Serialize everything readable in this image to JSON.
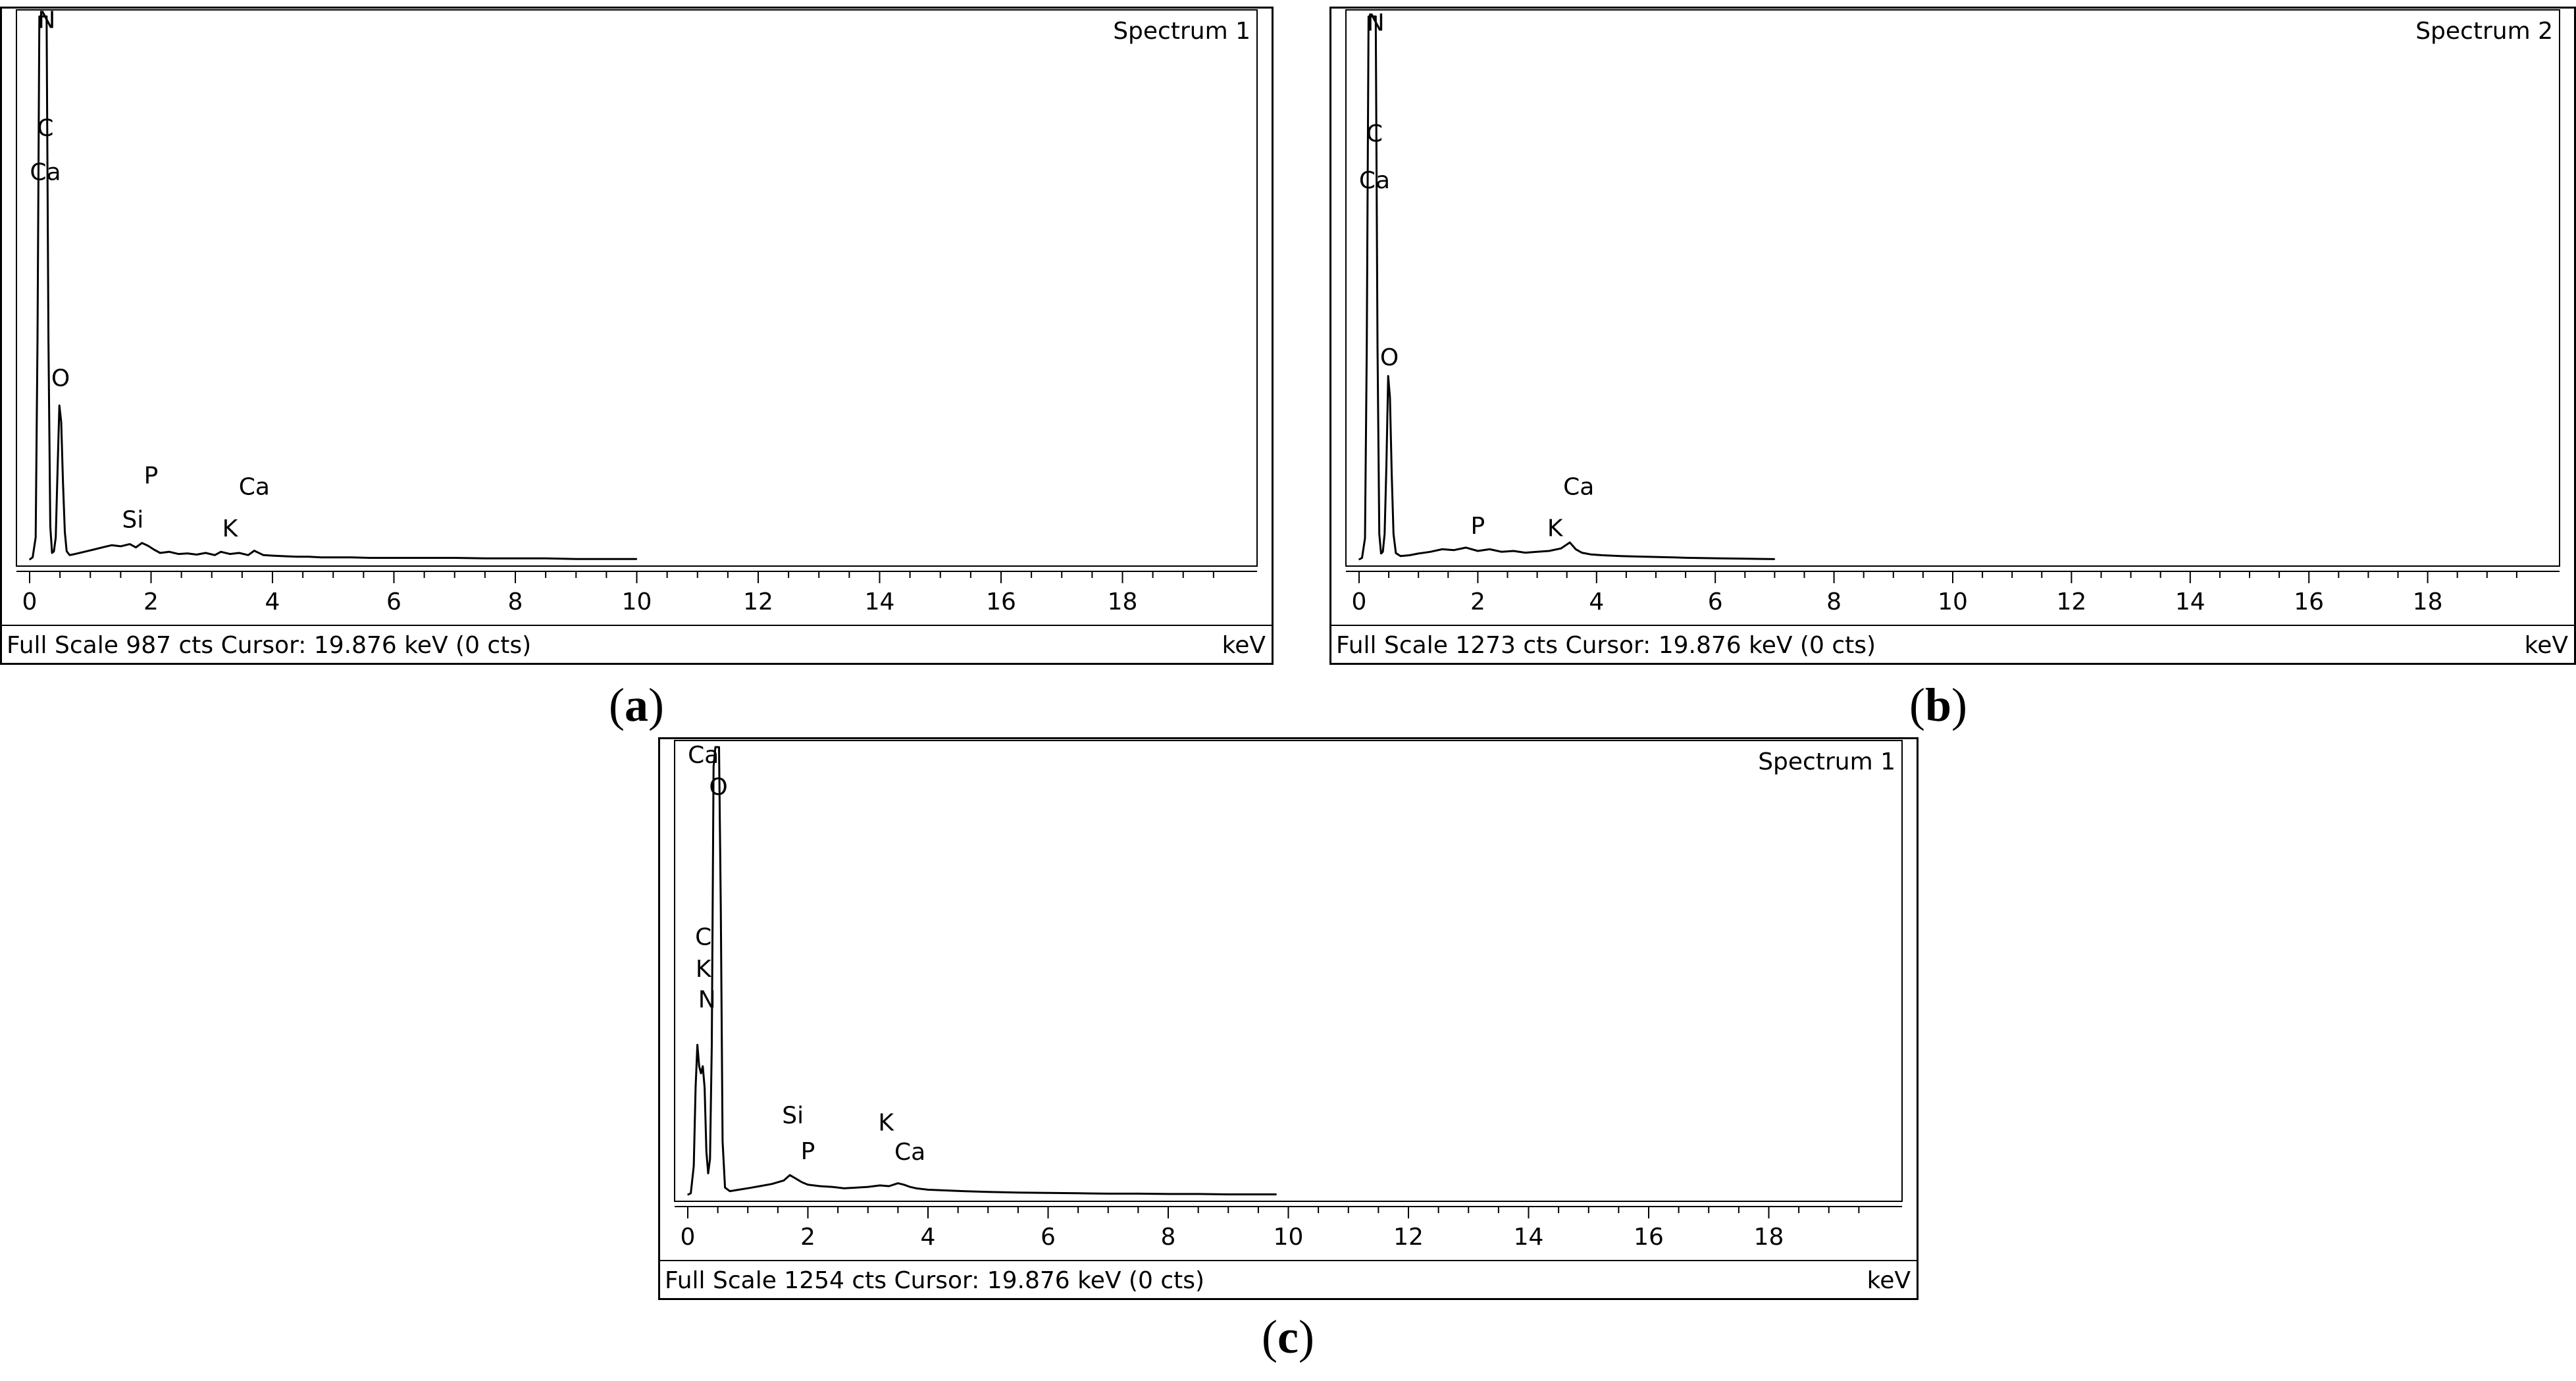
{
  "chart_data": [
    {
      "type": "line",
      "id": "a",
      "caption_letter": "a",
      "title": "Spectrum 1",
      "full_scale_cts": 987,
      "status_text": "Full Scale 987 cts  Cursor: 19.876 keV (0 cts)",
      "xlabel": "keV",
      "xlim": [
        0,
        20
      ],
      "ylim": [
        0,
        987
      ],
      "x_ticks": [
        0,
        2,
        4,
        6,
        8,
        10,
        12,
        14,
        16,
        18
      ],
      "x_minor_step": 0.5,
      "series": [
        {
          "x": [
            0,
            0.05,
            0.1,
            0.13,
            0.16,
            0.19,
            0.22,
            0.25,
            0.28,
            0.31,
            0.34,
            0.37,
            0.4,
            0.43,
            0.46,
            0.49,
            0.52,
            0.55,
            0.58,
            0.61,
            0.66,
            0.75,
            0.9,
            1.05,
            1.2,
            1.35,
            1.5,
            1.65,
            1.75,
            1.85,
            1.95,
            2.05,
            2.15,
            2.3,
            2.45,
            2.6,
            2.75,
            2.9,
            3.05,
            3.15,
            3.3,
            3.45,
            3.6,
            3.7,
            3.85,
            4.0,
            4.2,
            4.4,
            4.6,
            4.8,
            5.0,
            5.3,
            5.6,
            6.0,
            6.5,
            7.0,
            7.5,
            8.0,
            8.5,
            9.0,
            9.5,
            10
          ],
          "y": [
            0,
            4,
            40,
            400,
            987,
            987,
            987,
            987,
            987,
            400,
            60,
            12,
            15,
            40,
            160,
            280,
            250,
            140,
            50,
            15,
            8,
            10,
            14,
            18,
            22,
            26,
            24,
            28,
            22,
            30,
            25,
            18,
            12,
            14,
            10,
            11,
            9,
            12,
            8,
            14,
            10,
            12,
            8,
            16,
            8,
            7,
            6,
            5,
            5,
            4,
            4,
            4,
            3,
            3,
            3,
            3,
            2,
            2,
            2,
            1,
            1,
            1
          ]
        }
      ],
      "peak_labels": [
        {
          "text": "N",
          "x": 0.28,
          "y": 966
        },
        {
          "text": "C",
          "x": 0.26,
          "y": 770
        },
        {
          "text": "Ca",
          "x": 0.26,
          "y": 690
        },
        {
          "text": "O",
          "x": 0.51,
          "y": 315
        },
        {
          "text": "P",
          "x": 2.0,
          "y": 138
        },
        {
          "text": "Si",
          "x": 1.7,
          "y": 58
        },
        {
          "text": "Ca",
          "x": 3.7,
          "y": 118
        },
        {
          "text": "K",
          "x": 3.3,
          "y": 42
        }
      ]
    },
    {
      "type": "line",
      "id": "b",
      "caption_letter": "b",
      "title": "Spectrum 2",
      "full_scale_cts": 1273,
      "status_text": "Full Scale 1273 cts  Cursor: 19.876 keV (0 cts)",
      "xlabel": "keV",
      "xlim": [
        0,
        20
      ],
      "ylim": [
        0,
        1273
      ],
      "x_ticks": [
        0,
        2,
        4,
        6,
        8,
        10,
        12,
        14,
        16,
        18
      ],
      "x_minor_step": 0.5,
      "series": [
        {
          "x": [
            0,
            0.05,
            0.1,
            0.13,
            0.16,
            0.19,
            0.22,
            0.25,
            0.28,
            0.31,
            0.34,
            0.37,
            0.4,
            0.43,
            0.46,
            0.49,
            0.52,
            0.55,
            0.58,
            0.62,
            0.7,
            0.85,
            1.0,
            1.2,
            1.4,
            1.6,
            1.8,
            2.0,
            2.2,
            2.4,
            2.6,
            2.8,
            3.0,
            3.2,
            3.4,
            3.55,
            3.65,
            3.75,
            3.9,
            4.1,
            4.4,
            4.7,
            5.0,
            5.3,
            5.5,
            6.0,
            6.5,
            7.0
          ],
          "y": [
            0,
            4,
            50,
            500,
            1273,
            1273,
            1273,
            1273,
            1273,
            500,
            60,
            14,
            18,
            60,
            220,
            430,
            380,
            200,
            60,
            15,
            8,
            10,
            14,
            18,
            24,
            22,
            28,
            20,
            24,
            18,
            20,
            16,
            18,
            20,
            26,
            40,
            24,
            16,
            12,
            10,
            8,
            7,
            6,
            5,
            4,
            3,
            2,
            1
          ]
        }
      ],
      "peak_labels": [
        {
          "text": "N",
          "x": 0.28,
          "y": 1240
        },
        {
          "text": "C",
          "x": 0.26,
          "y": 980
        },
        {
          "text": "Ca",
          "x": 0.26,
          "y": 870
        },
        {
          "text": "O",
          "x": 0.51,
          "y": 455
        },
        {
          "text": "P",
          "x": 2.0,
          "y": 60
        },
        {
          "text": "K",
          "x": 3.3,
          "y": 55
        },
        {
          "text": "Ca",
          "x": 3.7,
          "y": 152
        }
      ]
    },
    {
      "type": "line",
      "id": "c",
      "caption_letter": "c",
      "title": "Spectrum 1",
      "full_scale_cts": 1254,
      "status_text": "Full Scale 1254 cts  Cursor: 19.876 keV (0 cts)",
      "xlabel": "keV",
      "xlim": [
        0,
        20
      ],
      "ylim": [
        0,
        1254
      ],
      "x_ticks": [
        0,
        2,
        4,
        6,
        8,
        10,
        12,
        14,
        16,
        18
      ],
      "x_minor_step": 0.5,
      "series": [
        {
          "x": [
            0,
            0.05,
            0.1,
            0.13,
            0.16,
            0.19,
            0.22,
            0.25,
            0.28,
            0.31,
            0.34,
            0.37,
            0.4,
            0.43,
            0.46,
            0.49,
            0.52,
            0.55,
            0.58,
            0.62,
            0.7,
            0.85,
            1.0,
            1.2,
            1.4,
            1.6,
            1.7,
            1.8,
            1.9,
            2.0,
            2.2,
            2.4,
            2.6,
            2.8,
            3.0,
            3.2,
            3.35,
            3.5,
            3.6,
            3.7,
            3.8,
            4.0,
            4.3,
            4.6,
            5.0,
            5.5,
            6.0,
            6.5,
            7.0,
            7.5,
            8.0,
            8.5,
            9.0,
            9.5,
            9.8
          ],
          "y": [
            0,
            4,
            80,
            300,
            420,
            360,
            340,
            360,
            300,
            120,
            60,
            100,
            420,
            1200,
            1254,
            1254,
            1254,
            800,
            150,
            20,
            10,
            14,
            18,
            24,
            30,
            40,
            55,
            45,
            35,
            28,
            24,
            22,
            18,
            20,
            22,
            26,
            24,
            32,
            28,
            22,
            18,
            14,
            12,
            10,
            8,
            6,
            5,
            4,
            3,
            3,
            2,
            2,
            1,
            1,
            1
          ]
        }
      ],
      "peak_labels": [
        {
          "text": "Ca",
          "x": 0.26,
          "y": 1210
        },
        {
          "text": "O",
          "x": 0.51,
          "y": 1120
        },
        {
          "text": "C",
          "x": 0.26,
          "y": 700
        },
        {
          "text": "K",
          "x": 0.26,
          "y": 610
        },
        {
          "text": "N",
          "x": 0.32,
          "y": 525
        },
        {
          "text": "Si",
          "x": 1.75,
          "y": 200
        },
        {
          "text": "P",
          "x": 2.0,
          "y": 100
        },
        {
          "text": "K",
          "x": 3.3,
          "y": 180
        },
        {
          "text": "Ca",
          "x": 3.7,
          "y": 98
        }
      ]
    }
  ]
}
